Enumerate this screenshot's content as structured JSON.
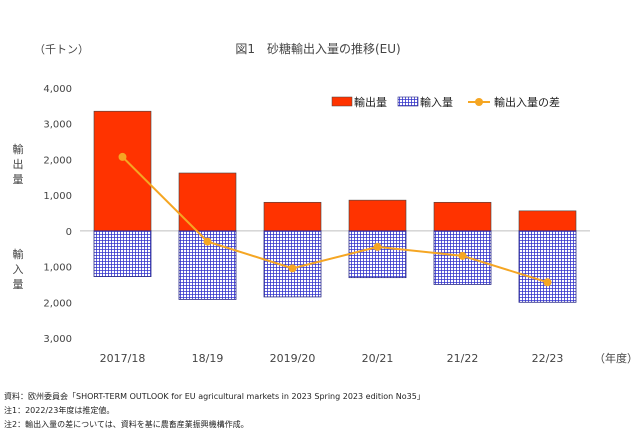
{
  "chart_data": {
    "type": "bar",
    "title": "図1　砂糖輸出入量の推移(EU)",
    "unit_label": "（千トン）",
    "xlabel_suffix": "（年度）",
    "ylabel_upper": "輸出量",
    "ylabel_lower": "輸入量",
    "categories": [
      "2017/18",
      "18/19",
      "2019/20",
      "20/21",
      "21/22",
      "22/23"
    ],
    "series": [
      {
        "name": "輸出量",
        "kind": "bar",
        "color": "#ff3300",
        "values": [
          3350,
          1620,
          800,
          860,
          800,
          560
        ]
      },
      {
        "name": "輸入量",
        "kind": "bar",
        "pattern": "grid",
        "color": "#3333cc",
        "values": [
          1280,
          1920,
          1850,
          1310,
          1500,
          2000
        ]
      },
      {
        "name": "輸出入量の差",
        "kind": "line",
        "color": "#f5a623",
        "values": [
          2070,
          -300,
          -1050,
          -450,
          -700,
          -1440
        ]
      }
    ],
    "ylim": [
      -3000,
      4000
    ],
    "yticks": [
      4000,
      3000,
      2000,
      1000,
      0,
      -1000,
      -2000,
      -3000
    ],
    "ytick_labels": [
      "4,000",
      "3,000",
      "2,000",
      "1,000",
      "0",
      "1,000",
      "2,000",
      "3,000"
    ],
    "legend_position": "top-right",
    "grid": false
  },
  "notes": [
    "資料：欧州委員会「SHORT-TERM OUTLOOK for EU agricultural markets in 2023 Spring 2023 edition No35」",
    "注1：2022/23年度は推定値。",
    "注2：輸出入量の差については、資料を基に農畜産業振興機構作成。"
  ]
}
